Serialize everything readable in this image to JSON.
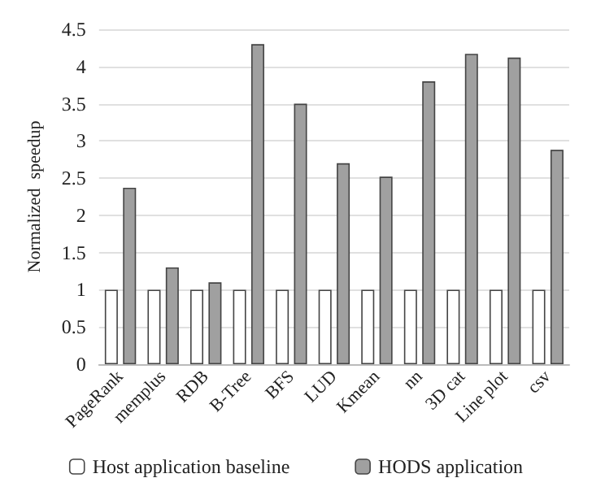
{
  "chart_data": {
    "type": "bar",
    "ylabel": "Normalized  speedup",
    "categories": [
      "PageRank",
      "memplus",
      "RDB",
      "B-Tree",
      "BFS",
      "LUD",
      "Kmean",
      "nn",
      "3D cat",
      "Line plot",
      "csv"
    ],
    "series": [
      {
        "name": "Host application baseline",
        "color": "#ffffff",
        "values": [
          1,
          1,
          1,
          1,
          1,
          1,
          1,
          1,
          1,
          1,
          1
        ]
      },
      {
        "name": "HODS application",
        "color": "#a0a0a0",
        "values": [
          2.37,
          1.3,
          1.1,
          4.3,
          3.5,
          2.7,
          2.52,
          3.8,
          4.17,
          4.12,
          2.88
        ]
      }
    ],
    "ylim": [
      0,
      4.5
    ],
    "yticks": [
      0,
      0.5,
      1,
      1.5,
      2,
      2.5,
      3,
      3.5,
      4,
      4.5
    ],
    "grid": "y",
    "legend": "bottom"
  }
}
